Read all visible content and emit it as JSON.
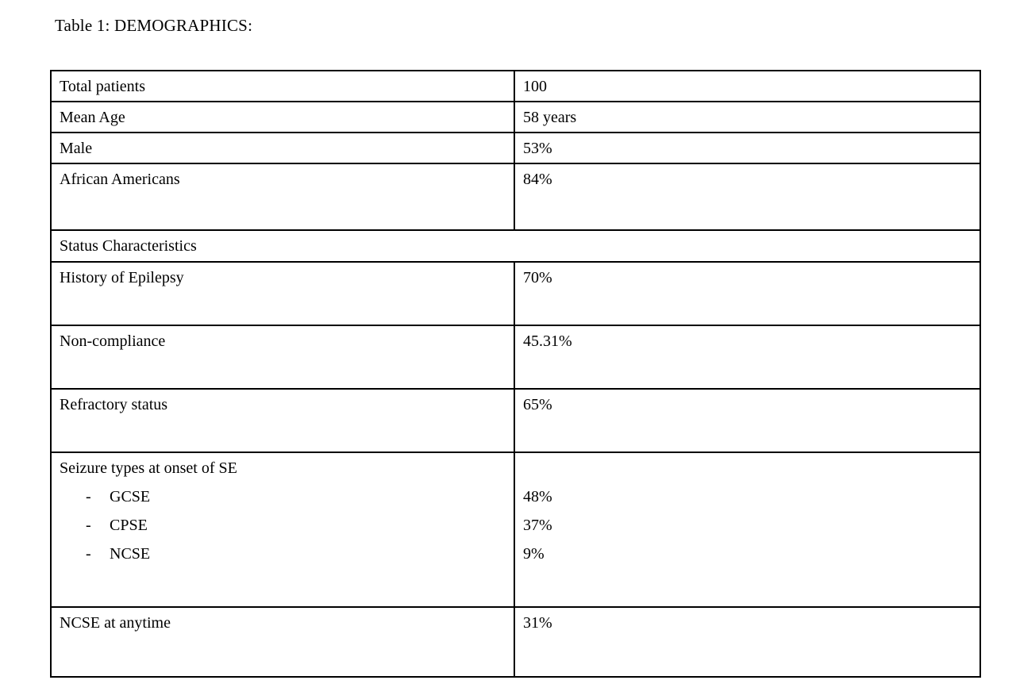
{
  "document": {
    "title": "Table 1: DEMOGRAPHICS:"
  },
  "table": {
    "rows": [
      {
        "label": "Total patients",
        "value": "100"
      },
      {
        "label": "Mean Age",
        "value": "58 years"
      },
      {
        "label": "Male",
        "value": "53%"
      },
      {
        "label": "African Americans",
        "value": "84%"
      },
      {
        "label": "Status Characteristics"
      },
      {
        "label": "History of Epilepsy",
        "value": "70%"
      },
      {
        "label": "Non-compliance",
        "value": "45.31%"
      },
      {
        "label": "Refractory status",
        "value": "65%"
      },
      {
        "label": "Seizure types at onset of SE",
        "items": [
          {
            "bullet": "-",
            "label": "GCSE",
            "value": "48%"
          },
          {
            "bullet": "-",
            "label": "CPSE",
            "value": "37%"
          },
          {
            "bullet": "-",
            "label": "NCSE",
            "value": "9%"
          }
        ]
      },
      {
        "label": "NCSE at anytime",
        "value": "31%"
      }
    ]
  }
}
